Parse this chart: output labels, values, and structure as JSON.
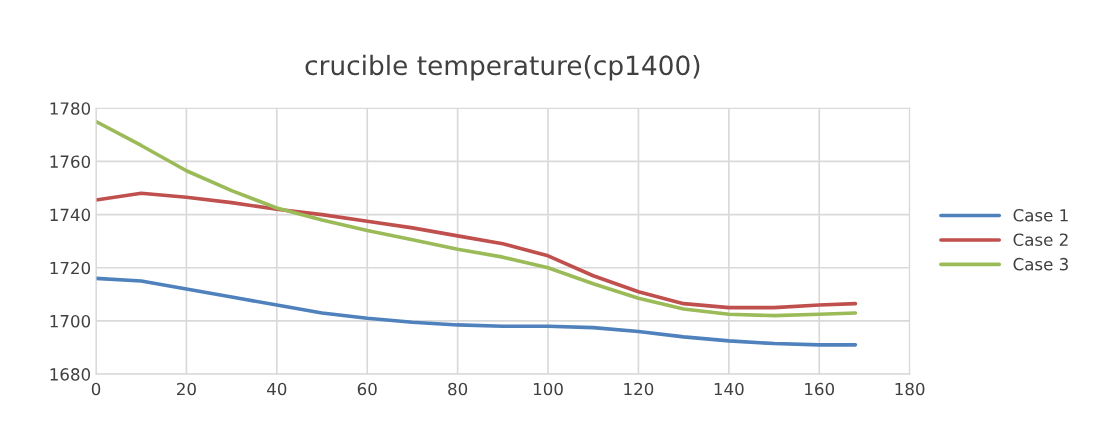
{
  "chart_data": {
    "type": "line",
    "title": "crucible temperature(cp1400)",
    "x": [
      0,
      10,
      20,
      30,
      40,
      50,
      60,
      70,
      80,
      90,
      100,
      110,
      120,
      130,
      140,
      150,
      160,
      168
    ],
    "series": [
      {
        "name": "Case 1",
        "color": "#4f81bd",
        "values": [
          1716,
          1715,
          1712,
          1709,
          1706,
          1703,
          1701,
          1699.5,
          1698.5,
          1698,
          1698,
          1697.5,
          1696,
          1694,
          1692.5,
          1691.5,
          1691,
          1691
        ]
      },
      {
        "name": "Case 2",
        "color": "#c0504d",
        "values": [
          1745.5,
          1748,
          1746.5,
          1744.5,
          1742,
          1740,
          1737.5,
          1735,
          1732,
          1729,
          1724.5,
          1717,
          1711,
          1706.5,
          1705,
          1705,
          1706,
          1706.5
        ]
      },
      {
        "name": "Case 3",
        "color": "#9bbb59",
        "values": [
          1775,
          1766,
          1756.5,
          1749,
          1742.5,
          1738,
          1734,
          1730.5,
          1727,
          1724,
          1720,
          1714,
          1708.5,
          1704.5,
          1702.5,
          1702,
          1702.5,
          1703
        ]
      }
    ],
    "xlim": [
      0,
      180
    ],
    "xticks": [
      0,
      20,
      40,
      60,
      80,
      100,
      120,
      140,
      160,
      180
    ],
    "ylim": [
      1680,
      1780
    ],
    "yticks": [
      1680,
      1700,
      1720,
      1740,
      1760,
      1780
    ],
    "grid": true,
    "legend": "right",
    "marker": "none",
    "line_style": "solid"
  }
}
